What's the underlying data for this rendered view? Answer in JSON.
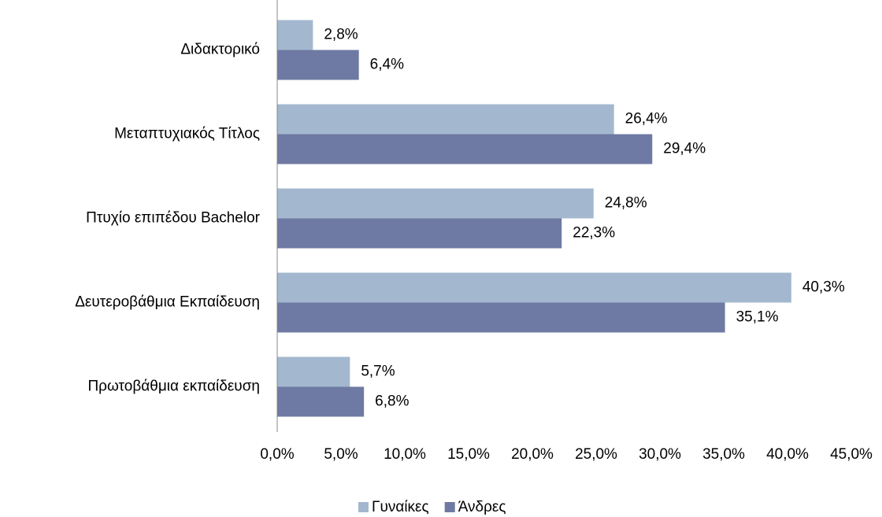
{
  "chart_data": {
    "type": "bar",
    "orientation": "horizontal",
    "categories": [
      "Διδακτορικό",
      "Μεταπτυχιακός Τίτλος",
      "Πτυχίο επιπέδου Bachelor",
      "Δευτεροβάθμια Εκπαίδευση",
      "Πρωτοβάθμια εκπαίδευση"
    ],
    "series": [
      {
        "name": "Γυναίκες",
        "color": "#a3b8cf",
        "values": [
          2.8,
          26.4,
          24.8,
          40.3,
          5.7
        ],
        "value_labels": [
          "2,8%",
          "26,4%",
          "24,8%",
          "40,3%",
          "5,7%"
        ]
      },
      {
        "name": "Άνδρες",
        "color": "#6e7aa3",
        "values": [
          6.4,
          29.4,
          22.3,
          35.1,
          6.8
        ],
        "value_labels": [
          "6,4%",
          "29,4%",
          "22,3%",
          "35,1%",
          "6,8%"
        ]
      }
    ],
    "xlim": [
      0,
      45
    ],
    "xticks": [
      {
        "value": 0,
        "label": "0,0%"
      },
      {
        "value": 5,
        "label": "5,0%"
      },
      {
        "value": 10,
        "label": "10,0%"
      },
      {
        "value": 15,
        "label": "15,0%"
      },
      {
        "value": 20,
        "label": "20,0%"
      },
      {
        "value": 25,
        "label": "25,0%"
      },
      {
        "value": 30,
        "label": "30,0%"
      },
      {
        "value": 35,
        "label": "35,0%"
      },
      {
        "value": 40,
        "label": "40,0%"
      },
      {
        "value": 45,
        "label": "45,0%"
      }
    ],
    "grid": false,
    "legend": "bottom"
  }
}
